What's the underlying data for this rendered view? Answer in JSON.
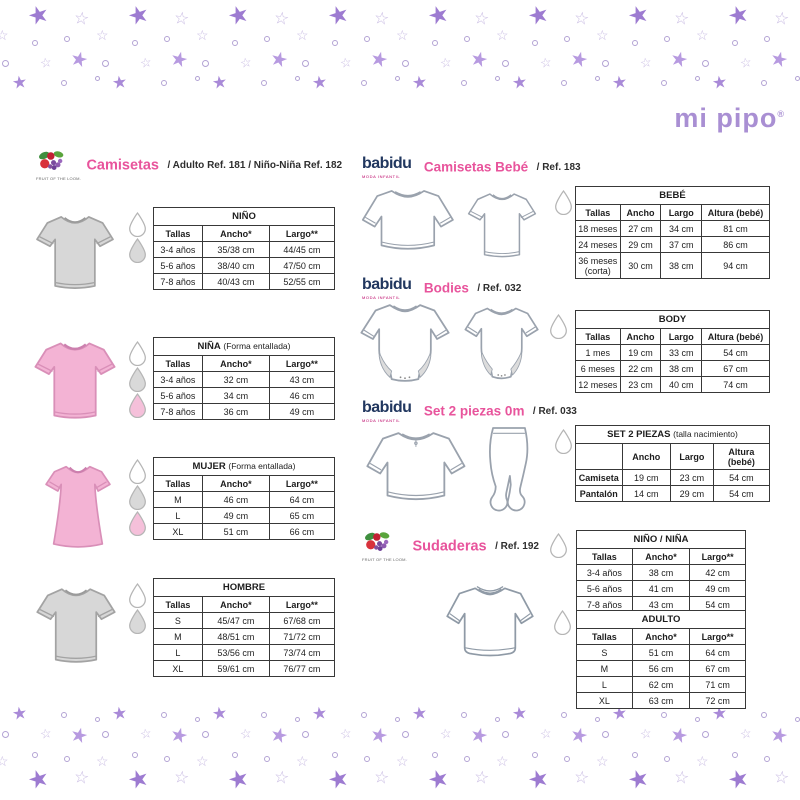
{
  "colors": {
    "accent_pink": "#e8549c",
    "brand_navy": "#21375f",
    "brand_purple": "#a98fd3",
    "garment_grey": "#d7d7d7",
    "garment_pink": "#f3b3d4",
    "table_border": "#383838"
  },
  "decor": {
    "fill_dark": "#9d7bd1",
    "fill_mid": "#a98ad8",
    "fill_light": "#b79ae0",
    "outline": "#c9bce3",
    "dot": "#b3a3d4"
  },
  "drop_colors": {
    "white": "#ffffff",
    "grey": "#d9d9d9",
    "pink": "#f5c0da"
  },
  "drops": {
    "nino": [
      "white",
      "grey"
    ],
    "nina": [
      "white",
      "grey",
      "pink"
    ],
    "mujer": [
      "white",
      "grey",
      "pink"
    ],
    "hombre": [
      "white",
      "grey"
    ],
    "bebe": [
      "white"
    ],
    "body": [
      "white"
    ],
    "set2": [
      "white"
    ],
    "sudadera_ninos": [
      "white"
    ],
    "adulto": [
      "white"
    ]
  },
  "brand_logo": {
    "name": "mi pipo",
    "reg": "®"
  },
  "brands": {
    "fol_text": "FRUIT OF THE LOOM.",
    "babidu_text": "babidu",
    "babidu_tagline": "MODA INFANTIL"
  },
  "sections": {
    "camisetas": {
      "title": "Camisetas",
      "ref": "/ Adulto Ref. 181 / Niño-Niña Ref. 182"
    },
    "camisetas_bebe": {
      "title": "Camisetas Bebé",
      "ref": "/ Ref. 183"
    },
    "bodies": {
      "title": "Bodies",
      "ref": "/ Ref. 032"
    },
    "set2": {
      "title": "Set 2 piezas 0m",
      "ref": "/ Ref. 033"
    },
    "sudaderas": {
      "title": "Sudaderas",
      "ref": "/ Ref. 192"
    }
  },
  "tables": {
    "nino": {
      "title": "NIÑO",
      "note": "",
      "columns": [
        "Tallas",
        "Ancho*",
        "Largo**"
      ],
      "rows": [
        [
          "3-4 años",
          "35/38 cm",
          "44/45 cm"
        ],
        [
          "5-6 años",
          "38/40 cm",
          "47/50 cm"
        ],
        [
          "7-8 años",
          "40/43 cm",
          "52/55 cm"
        ]
      ]
    },
    "nina": {
      "title": "NIÑA",
      "note": "(Forma entallada)",
      "columns": [
        "Tallas",
        "Ancho*",
        "Largo**"
      ],
      "rows": [
        [
          "3-4 años",
          "32 cm",
          "43 cm"
        ],
        [
          "5-6 años",
          "34 cm",
          "46 cm"
        ],
        [
          "7-8 años",
          "36 cm",
          "49 cm"
        ]
      ]
    },
    "mujer": {
      "title": "MUJER",
      "note": "(Forma entallada)",
      "columns": [
        "Tallas",
        "Ancho*",
        "Largo**"
      ],
      "rows": [
        [
          "M",
          "46 cm",
          "64 cm"
        ],
        [
          "L",
          "49 cm",
          "65 cm"
        ],
        [
          "XL",
          "51 cm",
          "66 cm"
        ]
      ]
    },
    "hombre": {
      "title": "HOMBRE",
      "note": "",
      "columns": [
        "Tallas",
        "Ancho*",
        "Largo**"
      ],
      "rows": [
        [
          "S",
          "45/47 cm",
          "67/68 cm"
        ],
        [
          "M",
          "48/51 cm",
          "71/72 cm"
        ],
        [
          "L",
          "53/56 cm",
          "73/74 cm"
        ],
        [
          "XL",
          "59/61 cm",
          "76/77 cm"
        ]
      ]
    },
    "bebe": {
      "title": "BEBÉ",
      "note": "",
      "columns": [
        "Tallas",
        "Ancho",
        "Largo",
        "Altura (bebé)"
      ],
      "rows": [
        [
          "18 meses",
          "27 cm",
          "34 cm",
          "81 cm"
        ],
        [
          "24 meses",
          "29 cm",
          "37 cm",
          "86 cm"
        ],
        [
          "36 meses (corta)",
          "30 cm",
          "38 cm",
          "94 cm"
        ]
      ]
    },
    "body": {
      "title": "BODY",
      "note": "",
      "columns": [
        "Tallas",
        "Ancho",
        "Largo",
        "Altura (bebé)"
      ],
      "rows": [
        [
          "1 mes",
          "19 cm",
          "33 cm",
          "54 cm"
        ],
        [
          "6 meses",
          "22 cm",
          "38 cm",
          "67 cm"
        ],
        [
          "12 meses",
          "23 cm",
          "40 cm",
          "74 cm"
        ]
      ]
    },
    "set2": {
      "title": "SET 2 PIEZAS",
      "note": "(talla nacimiento)",
      "bold_first": true,
      "columns": [
        "",
        "Ancho",
        "Largo",
        "Altura (bebé)"
      ],
      "rows": [
        [
          "Camiseta",
          "19 cm",
          "23 cm",
          "54 cm"
        ],
        [
          "Pantalón",
          "14 cm",
          "29 cm",
          "54 cm"
        ]
      ]
    },
    "sudadera_ninos": {
      "title": "NIÑO / NIÑA",
      "note": "",
      "columns": [
        "Tallas",
        "Ancho*",
        "Largo**"
      ],
      "rows": [
        [
          "3-4 años",
          "38 cm",
          "42 cm"
        ],
        [
          "5-6 años",
          "41 cm",
          "49 cm"
        ],
        [
          "7-8 años",
          "43 cm",
          "54 cm"
        ]
      ]
    },
    "adulto": {
      "title": "ADULTO",
      "note": "",
      "columns": [
        "Tallas",
        "Ancho*",
        "Largo**"
      ],
      "rows": [
        [
          "S",
          "51 cm",
          "64 cm"
        ],
        [
          "M",
          "56 cm",
          "67 cm"
        ],
        [
          "L",
          "62 cm",
          "71 cm"
        ],
        [
          "XL",
          "63 cm",
          "72 cm"
        ]
      ]
    }
  }
}
